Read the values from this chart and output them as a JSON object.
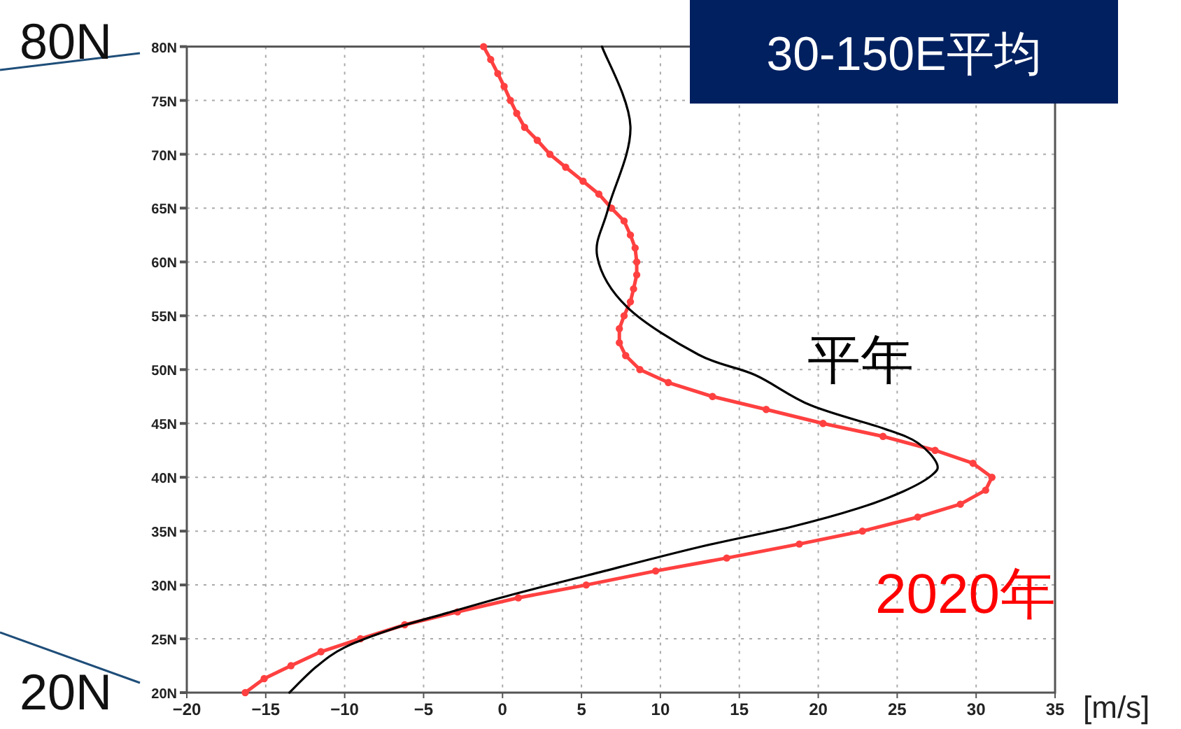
{
  "chart_data": {
    "type": "line",
    "title": "30-150E平均",
    "xlabel": "[m/s]",
    "xlim": [
      -20,
      35
    ],
    "ylim": [
      20,
      80
    ],
    "xticks": [
      {
        "value": -20,
        "label": "−20"
      },
      {
        "value": -15,
        "label": "−15"
      },
      {
        "value": -10,
        "label": "−10"
      },
      {
        "value": -5,
        "label": "−5"
      },
      0,
      5,
      10,
      15,
      20,
      25,
      30,
      35
    ],
    "yticks": [
      {
        "value": 20,
        "label": "20N"
      },
      {
        "value": 25,
        "label": "25N"
      },
      {
        "value": 30,
        "label": "30N"
      },
      {
        "value": 35,
        "label": "35N"
      },
      {
        "value": 40,
        "label": "40N"
      },
      {
        "value": 45,
        "label": "45N"
      },
      {
        "value": 50,
        "label": "50N"
      },
      {
        "value": 55,
        "label": "55N"
      },
      {
        "value": 60,
        "label": "60N"
      },
      {
        "value": 65,
        "label": "65N"
      },
      {
        "value": 70,
        "label": "70N"
      },
      {
        "value": 75,
        "label": "75N"
      },
      {
        "value": 80,
        "label": "80N"
      }
    ],
    "grid": true,
    "legend": false,
    "line_style": "solid",
    "annotations": [
      "80N",
      "20N"
    ],
    "series": [
      {
        "name": "平年",
        "color": "#000000",
        "marker": "none",
        "x": [
          -13.5,
          -11.8,
          -10.0,
          -7.0,
          -3.5,
          0.6,
          5.4,
          12.4,
          18.3,
          22.5,
          25.4,
          27.2,
          27.5,
          26.3,
          24.2,
          19.5,
          16.0,
          12.4,
          7.9,
          6.0,
          6.7,
          8.1,
          6.3
        ],
        "values": [
          20,
          22.4,
          24.2,
          25.9,
          27.4,
          29.1,
          30.9,
          33.5,
          35.4,
          37.1,
          38.7,
          40.2,
          41.3,
          43.2,
          44.5,
          46.7,
          49.5,
          51.4,
          55.8,
          60.5,
          65,
          72.6,
          80
        ]
      },
      {
        "name": "2020年",
        "color": "#ff4040",
        "marker": "circle",
        "x": [
          -16.3,
          -15.1,
          -13.4,
          -11.5,
          -9.0,
          -6.2,
          -2.85,
          1.0,
          5.3,
          9.7,
          14.2,
          18.8,
          22.8,
          26.3,
          29.0,
          30.6,
          31.0,
          29.8,
          27.4,
          24.1,
          20.3,
          16.7,
          13.3,
          10.5,
          8.7,
          7.8,
          7.4,
          7.4,
          7.7,
          8.1,
          8.3,
          8.5,
          8.5,
          8.4,
          8.1,
          7.7,
          6.9,
          6.1,
          5.1,
          4.0,
          3.0,
          2.2,
          1.4,
          0.9,
          0.5,
          0.1,
          -0.3,
          -0.75,
          -1.2
        ],
        "values": [
          20,
          21.3,
          22.5,
          23.8,
          25,
          26.3,
          27.5,
          28.8,
          30,
          31.3,
          32.5,
          33.8,
          35,
          36.3,
          37.5,
          38.8,
          40,
          41.3,
          42.5,
          43.8,
          45,
          46.3,
          47.5,
          48.8,
          50,
          51.3,
          52.5,
          53.8,
          55,
          56.3,
          57.5,
          58.8,
          60,
          61.3,
          62.5,
          63.8,
          65,
          66.3,
          67.5,
          68.8,
          70,
          71.3,
          72.5,
          73.8,
          75,
          76.3,
          77.5,
          78.8,
          80
        ]
      }
    ]
  }
}
